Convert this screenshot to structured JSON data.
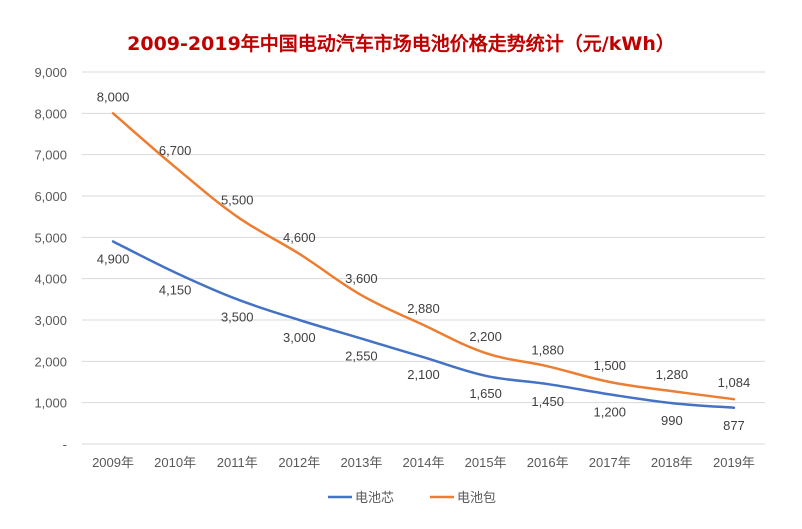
{
  "chart_data": {
    "type": "line",
    "title": "2009-2019年中国电动汽车市场电池价格走势统计（元/kWh）",
    "xlabel": "",
    "ylabel": "",
    "categories": [
      "2009年",
      "2010年",
      "2011年",
      "2012年",
      "2013年",
      "2014年",
      "2015年",
      "2016年",
      "2017年",
      "2018年",
      "2019年"
    ],
    "ylim": [
      0,
      9000
    ],
    "y_ticks": [
      0,
      1000,
      2000,
      3000,
      4000,
      5000,
      6000,
      7000,
      8000,
      9000
    ],
    "y_tick_labels": [
      "-",
      "1,000",
      "2,000",
      "3,000",
      "4,000",
      "5,000",
      "6,000",
      "7,000",
      "8,000",
      "9,000"
    ],
    "grid": true,
    "legend_position": "bottom",
    "series": [
      {
        "name": "电池芯",
        "color": "#4472c4",
        "values": [
          4900,
          4150,
          3500,
          3000,
          2550,
          2100,
          1650,
          1450,
          1200,
          990,
          877
        ],
        "labels": [
          "4,900",
          "4,150",
          "3,500",
          "3,000",
          "2,550",
          "2,100",
          "1,650",
          "1,450",
          "1,200",
          "990",
          "877"
        ],
        "label_position": "below"
      },
      {
        "name": "电池包",
        "color": "#ed7d31",
        "values": [
          8000,
          6700,
          5500,
          4600,
          3600,
          2880,
          2200,
          1880,
          1500,
          1280,
          1084
        ],
        "labels": [
          "8,000",
          "6,700",
          "5,500",
          "4,600",
          "3,600",
          "2,880",
          "2,200",
          "1,880",
          "1,500",
          "1,280",
          "1,084"
        ],
        "label_position": "above"
      }
    ]
  }
}
